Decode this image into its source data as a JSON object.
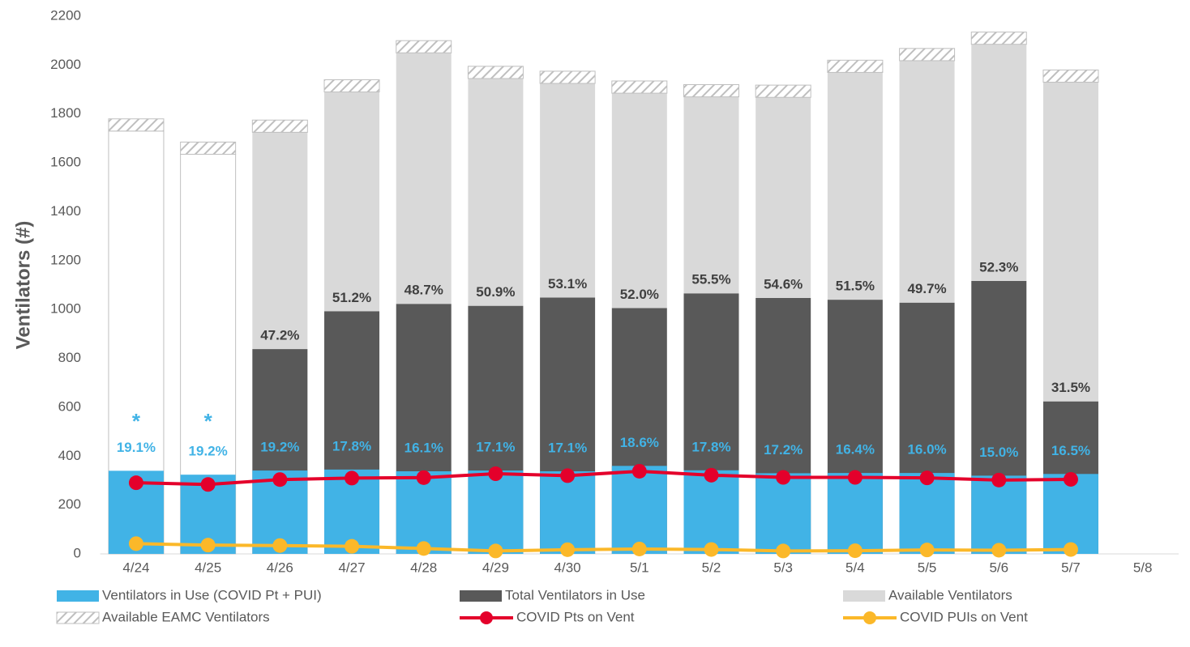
{
  "chart_data": {
    "type": "bar",
    "y_label": "Ventilators (#)",
    "categories": [
      "4/24",
      "4/25",
      "4/26",
      "4/27",
      "4/28",
      "4/29",
      "4/30",
      "5/1",
      "5/2",
      "5/3",
      "5/4",
      "5/5",
      "5/6",
      "5/7",
      "5/8"
    ],
    "ylim": [
      0,
      2200
    ],
    "yticks": [
      0,
      200,
      400,
      600,
      800,
      1000,
      1200,
      1400,
      1600,
      1800,
      2000,
      2200
    ],
    "grid": false,
    "legend": "bottom",
    "series": [
      {
        "name": "Ventilators in Use (COVID Pt + PUI)",
        "color": "#41b3e6",
        "role": "overlay",
        "values": [
          340,
          324,
          341,
          345,
          338,
          341,
          338,
          360,
          342,
          330,
          331,
          331,
          320,
          327,
          null
        ]
      },
      {
        "name": "Total Ventilators in Use",
        "color": "#595959",
        "role": "base",
        "values": [
          null,
          null,
          838,
          993,
          1023,
          1015,
          1049,
          1006,
          1066,
          1047,
          1040,
          1028,
          1117,
          624,
          null
        ]
      },
      {
        "name": "Available Ventilators",
        "color": "#d9d9d9",
        "role": "stack",
        "point_colors": [
          "#ffffff",
          "#ffffff",
          "#d9d9d9",
          "#d9d9d9",
          "#d9d9d9",
          "#d9d9d9",
          "#d9d9d9",
          "#d9d9d9",
          "#d9d9d9",
          "#d9d9d9",
          "#d9d9d9",
          "#d9d9d9",
          "#d9d9d9",
          "#d9d9d9",
          "#d9d9d9"
        ],
        "values": [
          1730,
          1635,
          887,
          897,
          1027,
          930,
          876,
          879,
          804,
          821,
          930,
          990,
          968,
          1306,
          null
        ]
      },
      {
        "name": "Available EAMC Ventilators",
        "color": "hatch",
        "role": "stack",
        "values": [
          50,
          50,
          50,
          50,
          50,
          50,
          50,
          50,
          50,
          50,
          50,
          50,
          50,
          50,
          null
        ]
      },
      {
        "name": "COVID Pts on Vent",
        "color": "#e4002b",
        "role": "line",
        "values": [
          291,
          284,
          304,
          310,
          312,
          328,
          320,
          338,
          322,
          313,
          313,
          311,
          302,
          305,
          null
        ]
      },
      {
        "name": "COVID PUIs on Vent",
        "color": "#fbb829",
        "role": "line",
        "values": [
          42,
          36,
          34,
          31,
          22,
          12,
          17,
          20,
          18,
          12,
          13,
          16,
          15,
          18,
          null
        ]
      }
    ],
    "annotations": {
      "covid_share": [
        "19.1%",
        "19.2%",
        "19.2%",
        "17.8%",
        "16.1%",
        "17.1%",
        "17.1%",
        "18.6%",
        "17.8%",
        "17.2%",
        "16.4%",
        "16.0%",
        "15.0%",
        "16.5%",
        null
      ],
      "total_share": [
        null,
        null,
        "47.2%",
        "51.2%",
        "48.7%",
        "50.9%",
        "53.1%",
        "52.0%",
        "55.5%",
        "54.6%",
        "51.5%",
        "49.7%",
        "52.3%",
        "31.5%",
        null
      ],
      "markers": [
        "*",
        "*",
        null,
        null,
        null,
        null,
        null,
        null,
        null,
        null,
        null,
        null,
        null,
        null,
        null
      ]
    }
  }
}
